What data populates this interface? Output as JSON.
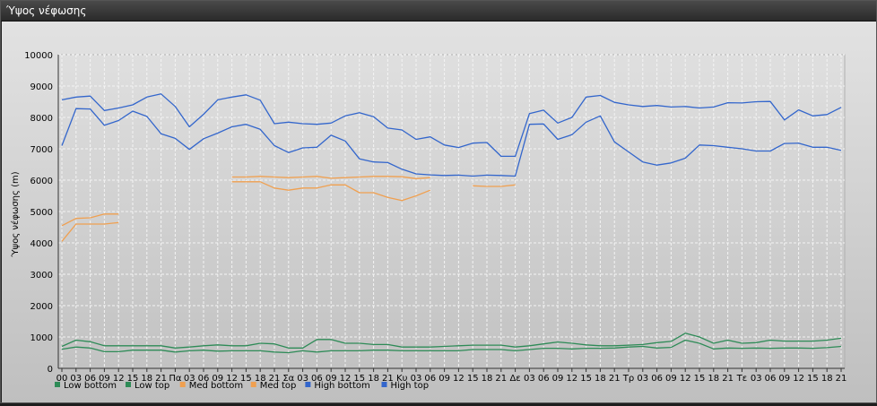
{
  "window": {
    "title": "Ύψος νέφωσης"
  },
  "chart_data": {
    "type": "line",
    "title": "",
    "xlabel": "",
    "ylabel": "Ύψος νέφωσης (m)",
    "ylim": [
      0,
      10000
    ],
    "yticks": [
      0,
      1000,
      2000,
      3000,
      4000,
      5000,
      6000,
      7000,
      8000,
      9000,
      10000
    ],
    "grid": true,
    "legend_position": "bottom-left",
    "x_tick_labels": [
      "00",
      "03",
      "06",
      "09",
      "12",
      "15",
      "18",
      "21",
      "Πα",
      "03",
      "06",
      "09",
      "12",
      "15",
      "18",
      "21",
      "Σα",
      "03",
      "06",
      "09",
      "12",
      "15",
      "18",
      "21",
      "Κυ",
      "03",
      "06",
      "09",
      "12",
      "15",
      "18",
      "21",
      "Δε",
      "03",
      "06",
      "09",
      "12",
      "15",
      "18",
      "21",
      "Τρ",
      "03",
      "06",
      "09",
      "12",
      "15",
      "18",
      "21",
      "Τε",
      "03",
      "06",
      "09",
      "12",
      "15",
      "18",
      "21"
    ],
    "series": [
      {
        "name": "Low bottom",
        "color": "#2e8b57",
        "values": [
          610,
          680,
          650,
          530,
          530,
          580,
          580,
          580,
          520,
          560,
          580,
          550,
          560,
          560,
          560,
          520,
          500,
          560,
          520,
          560,
          560,
          560,
          580,
          580,
          560,
          560,
          560,
          560,
          560,
          600,
          600,
          600,
          560,
          600,
          640,
          640,
          620,
          640,
          640,
          650,
          680,
          700,
          650,
          670,
          900,
          800,
          620,
          650,
          640,
          650,
          640,
          650,
          650,
          640,
          660,
          700
        ]
      },
      {
        "name": "Low top",
        "color": "#2e8b57",
        "values": [
          700,
          900,
          850,
          720,
          720,
          720,
          720,
          720,
          650,
          680,
          720,
          750,
          720,
          720,
          800,
          780,
          650,
          650,
          920,
          920,
          800,
          800,
          760,
          760,
          680,
          680,
          680,
          700,
          720,
          740,
          740,
          740,
          680,
          720,
          780,
          840,
          800,
          750,
          720,
          720,
          740,
          760,
          820,
          860,
          1120,
          1000,
          800,
          900,
          800,
          820,
          900,
          870,
          870,
          870,
          900,
          960
        ]
      },
      {
        "name": "Med bottom",
        "color": "#f0a050",
        "values": [
          4050,
          4600,
          4600,
          4600,
          4650,
          null,
          null,
          null,
          null,
          null,
          null,
          null,
          5950,
          5950,
          5950,
          5750,
          5680,
          5750,
          5750,
          5850,
          5850,
          5600,
          5600,
          5450,
          5350,
          5500,
          5680,
          null,
          null,
          5820,
          5800,
          5800,
          5850,
          null,
          null,
          null,
          null,
          null,
          null,
          null,
          null,
          null,
          null,
          null,
          null,
          null,
          null,
          null,
          null,
          null,
          null,
          null,
          null,
          null,
          null,
          null
        ]
      },
      {
        "name": "Med top",
        "color": "#f0a050",
        "values": [
          4550,
          4780,
          4800,
          4920,
          4920,
          null,
          null,
          null,
          null,
          null,
          null,
          null,
          6100,
          6100,
          6120,
          6100,
          6080,
          6100,
          6120,
          6060,
          6080,
          6100,
          6120,
          6120,
          6110,
          6050,
          6080,
          null,
          null,
          null,
          null,
          null,
          null,
          null,
          null,
          null,
          null,
          null,
          null,
          null,
          null,
          null,
          null,
          null,
          null,
          null,
          null,
          null,
          null,
          null,
          null,
          null,
          null,
          null,
          null,
          null
        ]
      },
      {
        "name": "High bottom",
        "color": "#3366cc",
        "values": [
          7100,
          8280,
          8270,
          7750,
          7900,
          8200,
          8030,
          7480,
          7330,
          6980,
          7320,
          7500,
          7700,
          7780,
          7620,
          7100,
          6880,
          7030,
          7050,
          7430,
          7250,
          6680,
          6580,
          6560,
          6350,
          6200,
          6170,
          6150,
          6160,
          6130,
          6160,
          6150,
          6130,
          7780,
          7790,
          7300,
          7450,
          7850,
          8050,
          7220,
          6900,
          6580,
          6480,
          6550,
          6700,
          7120,
          7100,
          7050,
          7000,
          6930,
          6930,
          7170,
          7180,
          7050,
          7050,
          6950
        ]
      },
      {
        "name": "High top",
        "color": "#3366cc",
        "values": [
          8560,
          8650,
          8680,
          8220,
          8300,
          8400,
          8650,
          8750,
          8350,
          7700,
          8100,
          8560,
          8650,
          8720,
          8550,
          7800,
          7850,
          7800,
          7780,
          7820,
          8050,
          8150,
          8020,
          7660,
          7600,
          7300,
          7380,
          7120,
          7040,
          7180,
          7200,
          6760,
          6760,
          8120,
          8230,
          7820,
          8000,
          8650,
          8700,
          8480,
          8400,
          8350,
          8380,
          8330,
          8350,
          8300,
          8330,
          8470,
          8460,
          8500,
          8510,
          7920,
          8240,
          8050,
          8090,
          8320
        ]
      }
    ]
  }
}
